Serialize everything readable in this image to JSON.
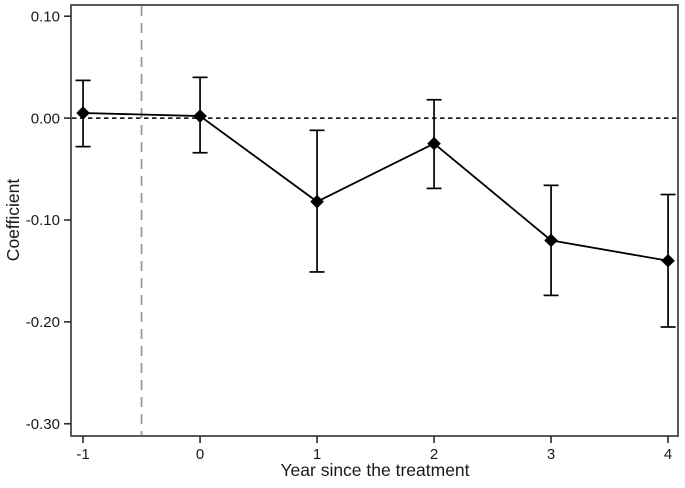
{
  "figure": {
    "background": "#ffffff",
    "border_color": "#5a5a5a",
    "tick_color": "#2b2b2b",
    "text_color": "#1a1a1a"
  },
  "chart_data": {
    "type": "line",
    "subtype": "event-study-coefficient-plot",
    "title": "",
    "xlabel": "Year since the treatment",
    "ylabel": "Coefficient",
    "x": [
      -1,
      0,
      1,
      2,
      3,
      4
    ],
    "series": [
      {
        "name": "coefficient",
        "values": [
          0.005,
          0.002,
          -0.082,
          -0.025,
          -0.12,
          -0.14
        ],
        "ci_low": [
          -0.028,
          -0.034,
          -0.151,
          -0.069,
          -0.174,
          -0.205
        ],
        "ci_high": [
          0.037,
          0.04,
          -0.012,
          0.018,
          -0.066,
          -0.075
        ],
        "color": "#000000",
        "marker": "diamond",
        "line_style": "solid"
      }
    ],
    "x_ticks": {
      "values": [
        -1,
        0,
        1,
        2,
        3,
        4
      ],
      "labels": [
        "-1",
        "0",
        "1",
        "2",
        "3",
        "4"
      ]
    },
    "y_ticks": {
      "values": [
        0.1,
        0.0,
        -0.1,
        -0.2,
        -0.3
      ],
      "labels": [
        "0.10",
        "0.00",
        "-0.10",
        "-0.20",
        "-0.30"
      ]
    },
    "xlim": [
      -1.103,
      4.085
    ],
    "ylim": [
      -0.312,
      0.111
    ],
    "grid": false,
    "legend": "none",
    "reference_lines": {
      "zero_line": {
        "y": 0,
        "color": "#000000",
        "style": "dashed"
      },
      "treatment_line": {
        "x": -0.5,
        "color": "#969696",
        "style": "dashed"
      }
    }
  }
}
